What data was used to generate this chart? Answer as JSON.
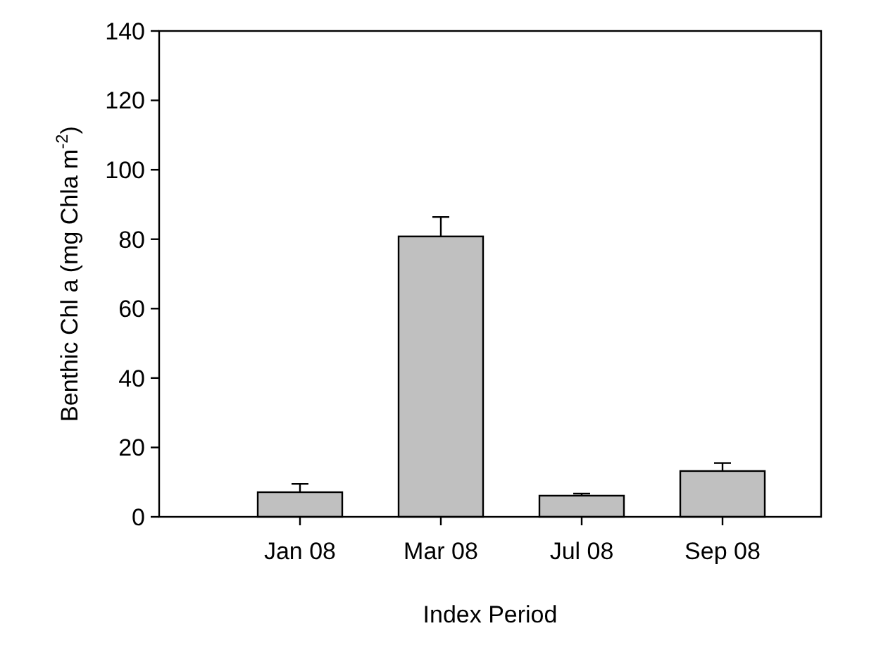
{
  "chart_data": {
    "type": "bar",
    "xlabel": "Index Period",
    "ylabel": "Benthic Chl a (mg Chla m$^{-2}$)",
    "categories": [
      "Jan 08",
      "Mar 08",
      "Jul 08",
      "Sep 08"
    ],
    "values": [
      7.1,
      80.8,
      6.1,
      13.2
    ],
    "errors": [
      [
        7.1,
        9.5
      ],
      [
        80.8,
        86.4
      ],
      [
        6.1,
        6.7
      ],
      [
        13.2,
        15.5
      ]
    ],
    "color": "#c0c0c0",
    "ylim": [
      0,
      140
    ],
    "yticks": [
      0,
      20,
      40,
      60,
      80,
      100,
      120,
      140
    ],
    "grid": false
  }
}
